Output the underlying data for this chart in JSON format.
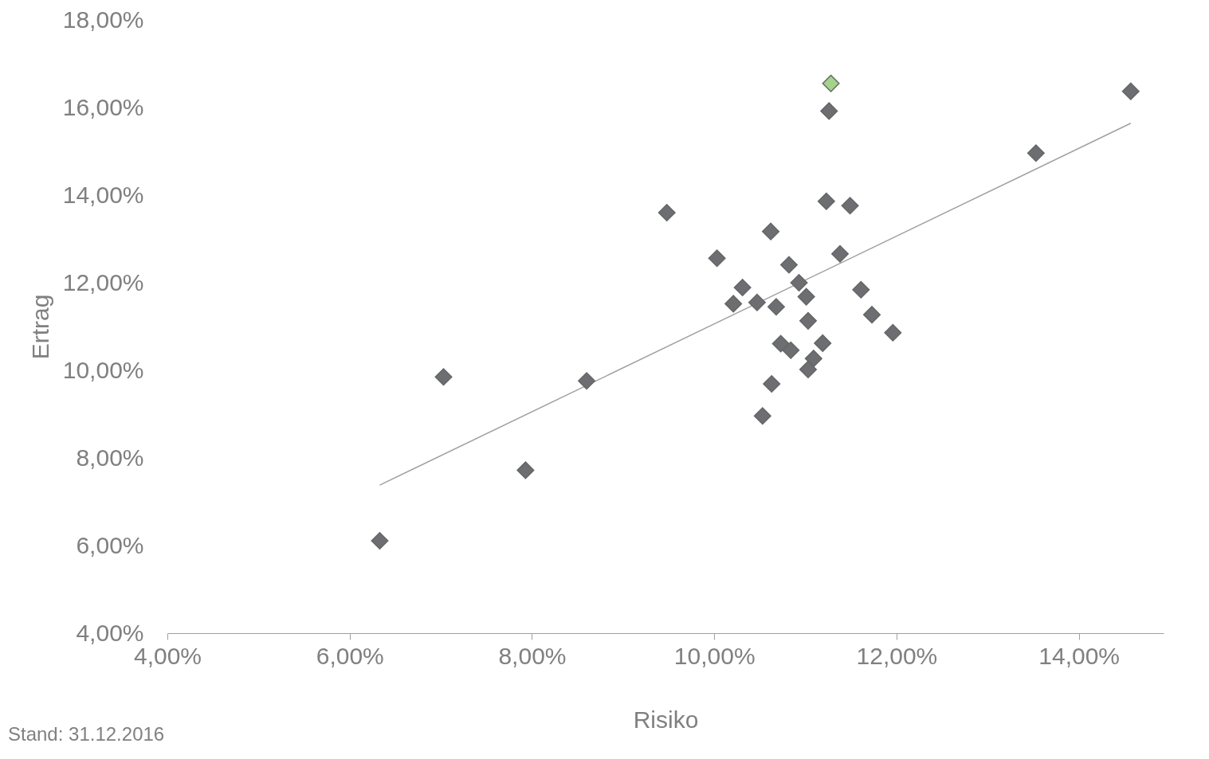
{
  "chart_data": {
    "type": "scatter",
    "xlabel": "Risiko",
    "ylabel": "Ertrag",
    "marker": "diamond",
    "grid": false,
    "legend": false,
    "xlim": [
      4,
      14.93
    ],
    "ylim": [
      4,
      18
    ],
    "xticks": [
      {
        "value": 4,
        "label": "4,00%"
      },
      {
        "value": 6,
        "label": "6,00%"
      },
      {
        "value": 8,
        "label": "8,00%"
      },
      {
        "value": 10,
        "label": "10,00%"
      },
      {
        "value": 12,
        "label": "12,00%"
      },
      {
        "value": 14,
        "label": "14,00%"
      }
    ],
    "yticks": [
      {
        "value": 4,
        "label": "4,00%"
      },
      {
        "value": 6,
        "label": "6,00%"
      },
      {
        "value": 8,
        "label": "8,00%"
      },
      {
        "value": 10,
        "label": "10,00%"
      },
      {
        "value": 12,
        "label": "12,00%"
      },
      {
        "value": 14,
        "label": "14,00%"
      },
      {
        "value": 16,
        "label": "16,00%"
      },
      {
        "value": 18,
        "label": "18,00%"
      }
    ],
    "annotations": [
      "Stand: 31.12.2016"
    ],
    "series": [
      {
        "type": "line",
        "marker": "none",
        "color": "#a0a0a0",
        "x": [
          6.33,
          14.57
        ],
        "values": [
          7.38,
          15.64
        ]
      },
      {
        "color": "#6d6e71",
        "x": [
          14.57,
          11.26,
          13.53,
          11.23,
          11.49,
          9.48,
          10.62,
          11.38,
          10.03,
          10.82,
          10.93,
          10.31,
          11.61,
          11.01,
          10.21,
          10.47,
          10.68,
          11.73,
          11.03,
          11.96,
          10.73,
          11.19,
          10.84,
          11.09,
          11.03,
          7.03,
          8.6,
          10.63,
          10.53,
          7.93,
          6.33
        ],
        "values": [
          16.37,
          15.92,
          14.96,
          13.86,
          13.76,
          13.6,
          13.17,
          12.66,
          12.56,
          12.41,
          12.0,
          11.89,
          11.84,
          11.68,
          11.52,
          11.55,
          11.45,
          11.27,
          11.13,
          10.86,
          10.61,
          10.62,
          10.46,
          10.27,
          10.02,
          9.85,
          9.76,
          9.69,
          8.96,
          7.72,
          6.11
        ]
      },
      {
        "color": "#a3d48a",
        "x": [
          11.28
        ],
        "values": [
          16.55
        ]
      }
    ]
  }
}
